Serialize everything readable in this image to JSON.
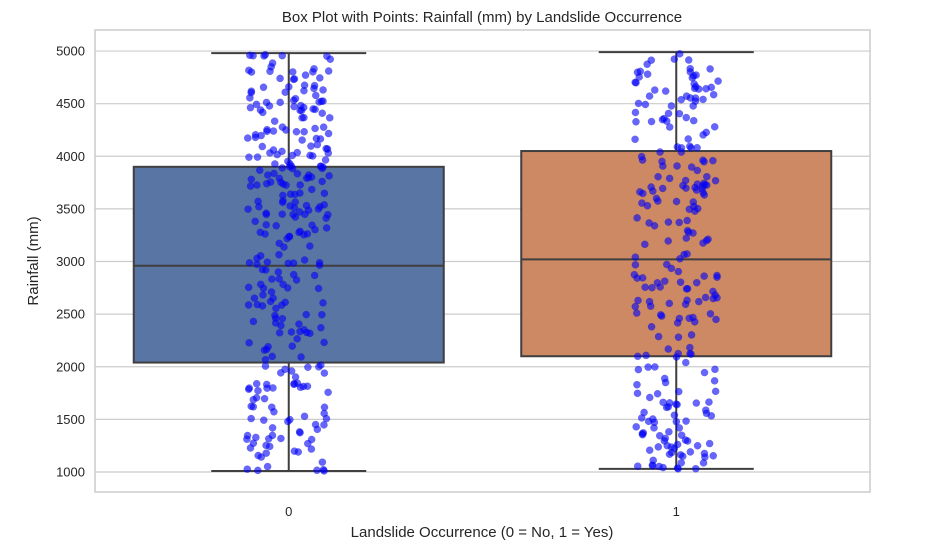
{
  "chart_data": {
    "type": "box",
    "title": "Box Plot with Points: Rainfall (mm) by Landslide Occurrence",
    "xlabel": "Landslide Occurrence (0 = No, 1 = Yes)",
    "ylabel": "Rainfall (mm)",
    "categories": [
      "0",
      "1"
    ],
    "ylim": [
      810,
      5200
    ],
    "yticks": [
      1000,
      1500,
      2000,
      2500,
      3000,
      3500,
      4000,
      4500,
      5000
    ],
    "grid": true,
    "boxes": [
      {
        "category": "0",
        "min": 1010,
        "q1": 2040,
        "median": 2960,
        "q3": 3900,
        "max": 4980,
        "color": "#5975a4"
      },
      {
        "category": "1",
        "min": 1030,
        "q1": 2100,
        "median": 3020,
        "q3": 4050,
        "max": 4990,
        "color": "#cc8963"
      }
    ],
    "points_color": "#0000ff",
    "points_per_category": [
      300,
      250
    ]
  }
}
